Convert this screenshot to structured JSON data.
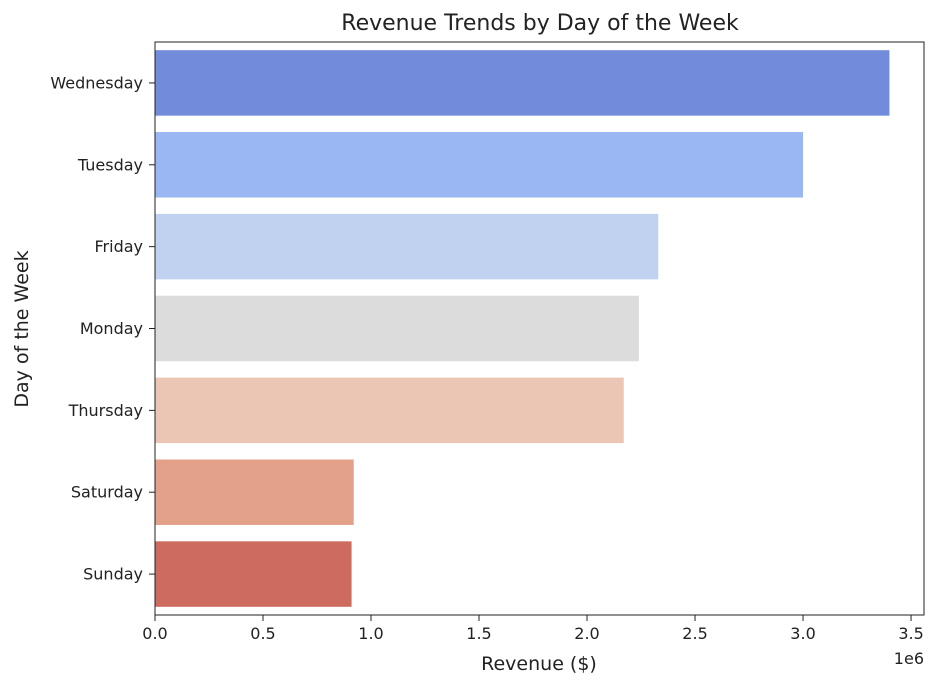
{
  "chart_data": {
    "type": "bar",
    "orientation": "horizontal",
    "title": "Revenue Trends by Day of the Week",
    "xlabel": "Revenue ($)",
    "ylabel": "Day of the Week",
    "x_multiplier_label": "1e6",
    "xlim": [
      0,
      3.56
    ],
    "x_ticks": [
      "0.0",
      "0.5",
      "1.0",
      "1.5",
      "2.0",
      "2.5",
      "3.0",
      "3.5"
    ],
    "grid": false,
    "categories": [
      "Wednesday",
      "Tuesday",
      "Friday",
      "Monday",
      "Thursday",
      "Saturday",
      "Sunday"
    ],
    "values": [
      3.4,
      3.0,
      2.33,
      2.24,
      2.17,
      0.92,
      0.91
    ],
    "colors": [
      "#728bdb",
      "#9ab6f3",
      "#c1d2f1",
      "#dcdcdc",
      "#ecc6b5",
      "#e4a18a",
      "#cc6b5e"
    ]
  }
}
